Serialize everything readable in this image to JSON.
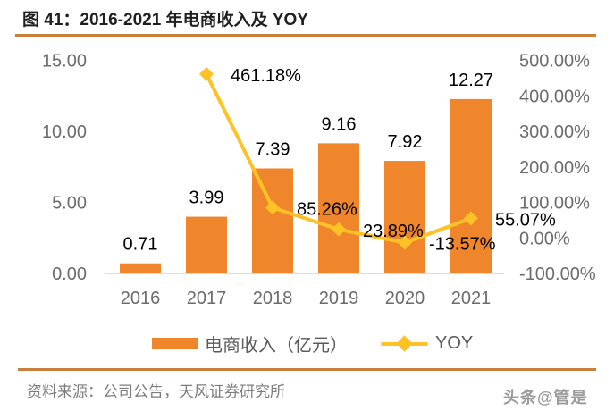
{
  "header": {
    "title": "图 41：2016-2021 年电商收入及 YOY"
  },
  "chart_data": {
    "type": "bar+line",
    "title": "图 41：2016-2021 年电商收入及 YOY",
    "categories": [
      "2016",
      "2017",
      "2018",
      "2019",
      "2020",
      "2021"
    ],
    "series": [
      {
        "name": "电商收入（亿元）",
        "type": "bar",
        "axis": "left",
        "color": "#F0862C",
        "values": [
          0.71,
          3.99,
          7.39,
          9.16,
          7.92,
          12.27
        ],
        "labels": [
          "0.71",
          "3.99",
          "7.39",
          "9.16",
          "7.92",
          "12.27"
        ]
      },
      {
        "name": "YOY",
        "type": "line",
        "axis": "right",
        "color": "#FFC226",
        "values": [
          null,
          461.18,
          85.26,
          23.89,
          -13.57,
          55.07
        ],
        "labels": [
          null,
          "461.18%",
          "85.26%",
          "23.89%",
          "-13.57%",
          "55.07%"
        ]
      }
    ],
    "left_axis": {
      "min": 0,
      "max": 15,
      "tick_values": [
        15,
        10,
        5,
        0
      ],
      "tick_labels": [
        "15.00",
        "10.00",
        "5.00",
        "0.00"
      ]
    },
    "right_axis": {
      "min": -100,
      "max": 500,
      "tick_values": [
        500,
        400,
        300,
        200,
        100,
        0,
        -100
      ],
      "tick_labels": [
        "500.00%",
        "400.00%",
        "300.00%",
        "200.00%",
        "100.00%",
        "0.00%",
        "-100.00%"
      ]
    },
    "grid": false,
    "legend_position": "bottom"
  },
  "colors": {
    "bar": "#F0862C",
    "line": "#FFC226",
    "rule": "#C9803E",
    "axis_text": "#6B6B6B",
    "data_label": "#000000",
    "axis_line": "#D4D4D4",
    "title_text": "#1F1F1F",
    "footer_text": "#7C7C7C",
    "watermark_text": "#9B9B9B"
  },
  "footer": {
    "source": "资料来源：公司公告，天风证券研究所"
  },
  "watermark": "头条@管是"
}
